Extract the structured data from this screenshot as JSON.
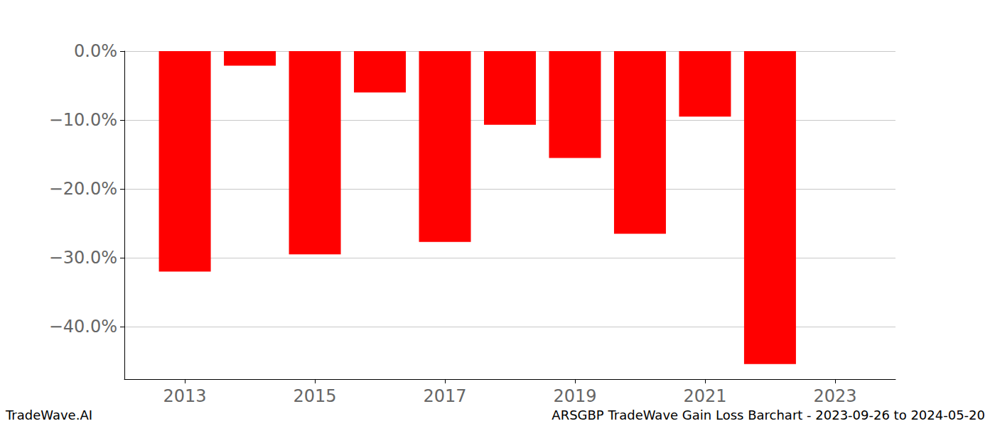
{
  "chart_data": {
    "type": "bar",
    "title": "ARSGBP TradeWave Gain Loss Barchart - 2023-09-26 to 2024-05-20",
    "annotations": [
      "TradeWave.AI"
    ],
    "x": [
      2013,
      2014,
      2015,
      2016,
      2017,
      2018,
      2019,
      2020,
      2021,
      2022
    ],
    "values": [
      -32.0,
      -2.1,
      -29.5,
      -6.0,
      -27.7,
      -10.7,
      -15.5,
      -26.5,
      -9.5,
      -45.4
    ],
    "color": "#ff0000",
    "xlim": [
      2012.07,
      2023.93
    ],
    "xticks": [
      2013,
      2015,
      2017,
      2019,
      2021,
      2023
    ],
    "ylim": [
      -47.6,
      0
    ],
    "yticks": [
      {
        "value": 0,
        "label": "0.0%"
      },
      {
        "value": -10,
        "label": "−10.0%"
      },
      {
        "value": -20,
        "label": "−20.0%"
      },
      {
        "value": -30,
        "label": "−30.0%"
      },
      {
        "value": -40,
        "label": "−40.0%"
      }
    ],
    "grid": true
  }
}
